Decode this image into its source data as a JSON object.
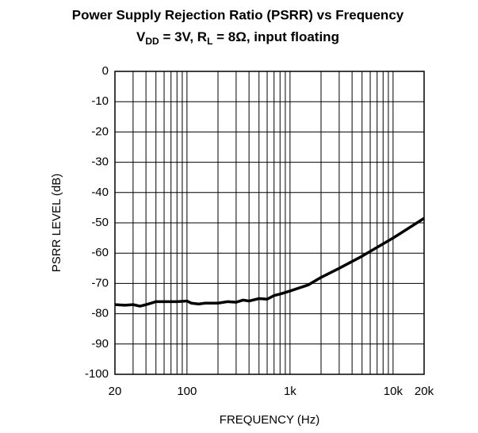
{
  "chart_data": {
    "type": "line",
    "title": "Power Supply Rejection Ratio (PSRR) vs Frequency",
    "subtitle_parts": [
      "V",
      "DD",
      " = 3V, R",
      "L",
      " = 8Ω, input floating"
    ],
    "xlabel": "FREQUENCY (Hz)",
    "ylabel": "PSRR LEVEL (dB)",
    "xscale": "log",
    "grid": true,
    "xlim": [
      20,
      20000
    ],
    "ylim": [
      -100,
      0
    ],
    "xticks": [
      20,
      100,
      {
        "value": 1000,
        "label": "1k"
      },
      {
        "value": 10000,
        "label": "10k"
      },
      {
        "value": 20000,
        "label": "20k"
      }
    ],
    "xminor_ticks": [
      30,
      40,
      50,
      60,
      70,
      80,
      90,
      200,
      300,
      400,
      500,
      600,
      700,
      800,
      900,
      2000,
      3000,
      4000,
      5000,
      6000,
      7000,
      8000,
      9000
    ],
    "yticks": [
      0,
      -10,
      -20,
      -30,
      -40,
      -50,
      -60,
      -70,
      -80,
      -90,
      -100
    ],
    "series": [
      {
        "color": "#000000",
        "x": [
          20,
          25,
          30,
          35,
          40,
          45,
          50,
          60,
          70,
          80,
          100,
          110,
          130,
          150,
          200,
          250,
          300,
          350,
          400,
          500,
          600,
          700,
          800,
          1000,
          1500,
          2000,
          3000,
          5000,
          10000,
          20000
        ],
        "values": [
          -77,
          -77.2,
          -77,
          -77.5,
          -77,
          -76.5,
          -76,
          -76,
          -76,
          -76,
          -75.8,
          -76.5,
          -76.8,
          -76.5,
          -76.5,
          -76,
          -76.2,
          -75.5,
          -75.8,
          -75,
          -75.2,
          -74,
          -73.5,
          -72.5,
          -70.5,
          -68,
          -65,
          -61,
          -55,
          -48.5
        ]
      }
    ]
  }
}
